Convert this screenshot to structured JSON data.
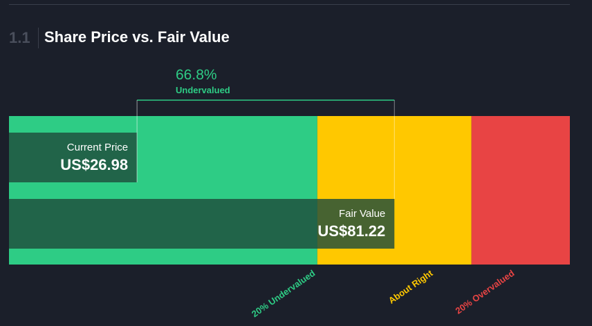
{
  "section": {
    "number": "1.1",
    "title": "Share Price vs. Fair Value"
  },
  "difference": {
    "percent": "66.8%",
    "label": "Undervalued"
  },
  "colors": {
    "background": "#1b1f2a",
    "undervalued": "#2ecc85",
    "about_right": "#ffc800",
    "overvalued": "#e84444",
    "bar_overlay": "#1e4d3c"
  },
  "chart_data": {
    "type": "bar",
    "orientation": "horizontal",
    "bars": [
      {
        "name": "Current Price",
        "value": 26.98,
        "label": "US$26.98"
      },
      {
        "name": "Fair Value",
        "value": 81.22,
        "label": "US$81.22"
      }
    ],
    "zones": [
      {
        "name": "20% Undervalued",
        "from": 0,
        "to": 64.98,
        "color": "#2ecc85"
      },
      {
        "name": "About Right",
        "from": 64.98,
        "to": 97.46,
        "color": "#ffc800"
      },
      {
        "name": "20% Overvalued",
        "from": 97.46,
        "to": 118.2,
        "color": "#e84444"
      }
    ],
    "xlim": [
      0,
      118.2
    ]
  }
}
